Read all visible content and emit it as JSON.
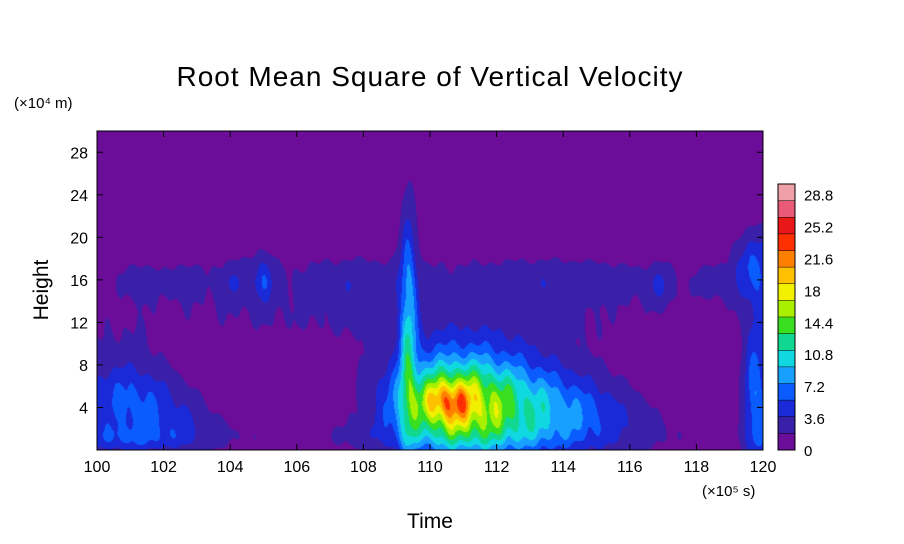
{
  "chart_data": {
    "type": "heatmap",
    "title": "Root Mean Square of Vertical Velocity",
    "xlabel": "Time",
    "ylabel": "Height",
    "x_unit": "(×10⁵ s)",
    "y_unit": "(×10⁴ m)",
    "xlim": [
      100,
      120
    ],
    "ylim": [
      0,
      30
    ],
    "x_ticks": [
      "100",
      "102",
      "104",
      "106",
      "108",
      "110",
      "112",
      "114",
      "116",
      "118",
      "120"
    ],
    "y_ticks": [
      "4",
      "8",
      "12",
      "16",
      "20",
      "24",
      "28"
    ],
    "colorbar": {
      "range": [
        0,
        30
      ],
      "labels": [
        "0",
        "3.6",
        "7.2",
        "10.8",
        "14.4",
        "18",
        "21.6",
        "25.2",
        "28.8"
      ],
      "colors": [
        "#6b0d99",
        "#3a1fa8",
        "#1a2ad8",
        "#0a5cff",
        "#18a0ff",
        "#10d8e0",
        "#10d890",
        "#38e020",
        "#a8f000",
        "#f0f000",
        "#ffc000",
        "#ff8000",
        "#ff3000",
        "#e81818",
        "#e85a78",
        "#f0a0a8"
      ]
    },
    "background_value": 0.5,
    "features": [
      {
        "x": 100.7,
        "y": 5.0,
        "sx": 1.0,
        "sy": 3.2,
        "v": 4.2
      },
      {
        "x": 101.7,
        "y": 3.6,
        "sx": 1.0,
        "sy": 2.4,
        "v": 2.5
      },
      {
        "x": 102.8,
        "y": 2.5,
        "sx": 0.8,
        "sy": 1.6,
        "v": 1.4
      },
      {
        "x": 100.8,
        "y": 1.0,
        "sx": 1.5,
        "sy": 0.8,
        "v": 2.0
      },
      {
        "x": 104.5,
        "y": 15.5,
        "sx": 6.0,
        "sy": 2.8,
        "v": 1.0
      },
      {
        "x": 113.5,
        "y": 15.5,
        "sx": 7.0,
        "sy": 2.8,
        "v": 1.0
      },
      {
        "x": 105.0,
        "y": 16.0,
        "sx": 0.2,
        "sy": 1.6,
        "v": 3.5
      },
      {
        "x": 104.2,
        "y": 15.8,
        "sx": 0.4,
        "sy": 1.2,
        "v": 1.9
      },
      {
        "x": 101.3,
        "y": 15.8,
        "sx": 0.35,
        "sy": 1.1,
        "v": 1.6
      },
      {
        "x": 102.6,
        "y": 15.8,
        "sx": 0.3,
        "sy": 1.0,
        "v": 1.6
      },
      {
        "x": 107.8,
        "y": 15.6,
        "sx": 0.8,
        "sy": 1.3,
        "v": 1.4
      },
      {
        "x": 114.0,
        "y": 15.8,
        "sx": 1.8,
        "sy": 1.3,
        "v": 1.6
      },
      {
        "x": 116.9,
        "y": 15.5,
        "sx": 0.25,
        "sy": 1.3,
        "v": 2.2
      },
      {
        "x": 118.4,
        "y": 15.8,
        "sx": 0.3,
        "sy": 1.0,
        "v": 1.6
      },
      {
        "x": 104.5,
        "y": 11.5,
        "sx": 6.0,
        "sy": 1.6,
        "v": 0.5
      },
      {
        "x": 114.0,
        "y": 11.5,
        "sx": 6.0,
        "sy": 1.6,
        "v": 0.5
      },
      {
        "x": 110.0,
        "y": 1.2,
        "sx": 10.0,
        "sy": 1.2,
        "v": 1.2
      },
      {
        "x": 109.35,
        "y": 11.0,
        "sx": 0.18,
        "sy": 8.0,
        "v": 7.5
      },
      {
        "x": 110.6,
        "y": 4.3,
        "sx": 1.3,
        "sy": 3.1,
        "v": 13.0
      },
      {
        "x": 110.5,
        "y": 4.6,
        "sx": 0.45,
        "sy": 1.3,
        "v": 6.0
      },
      {
        "x": 112.4,
        "y": 3.8,
        "sx": 1.6,
        "sy": 3.3,
        "v": 7.0
      },
      {
        "x": 114.2,
        "y": 3.5,
        "sx": 1.3,
        "sy": 2.5,
        "v": 2.8
      },
      {
        "x": 115.5,
        "y": 3.0,
        "sx": 1.2,
        "sy": 2.0,
        "v": 1.2
      },
      {
        "x": 111.2,
        "y": 9.0,
        "sx": 2.0,
        "sy": 2.5,
        "v": 1.5
      },
      {
        "x": 119.8,
        "y": 5.0,
        "sx": 0.28,
        "sy": 4.8,
        "v": 7.0
      },
      {
        "x": 119.9,
        "y": 17.0,
        "sx": 0.55,
        "sy": 2.5,
        "v": 5.0
      }
    ]
  }
}
